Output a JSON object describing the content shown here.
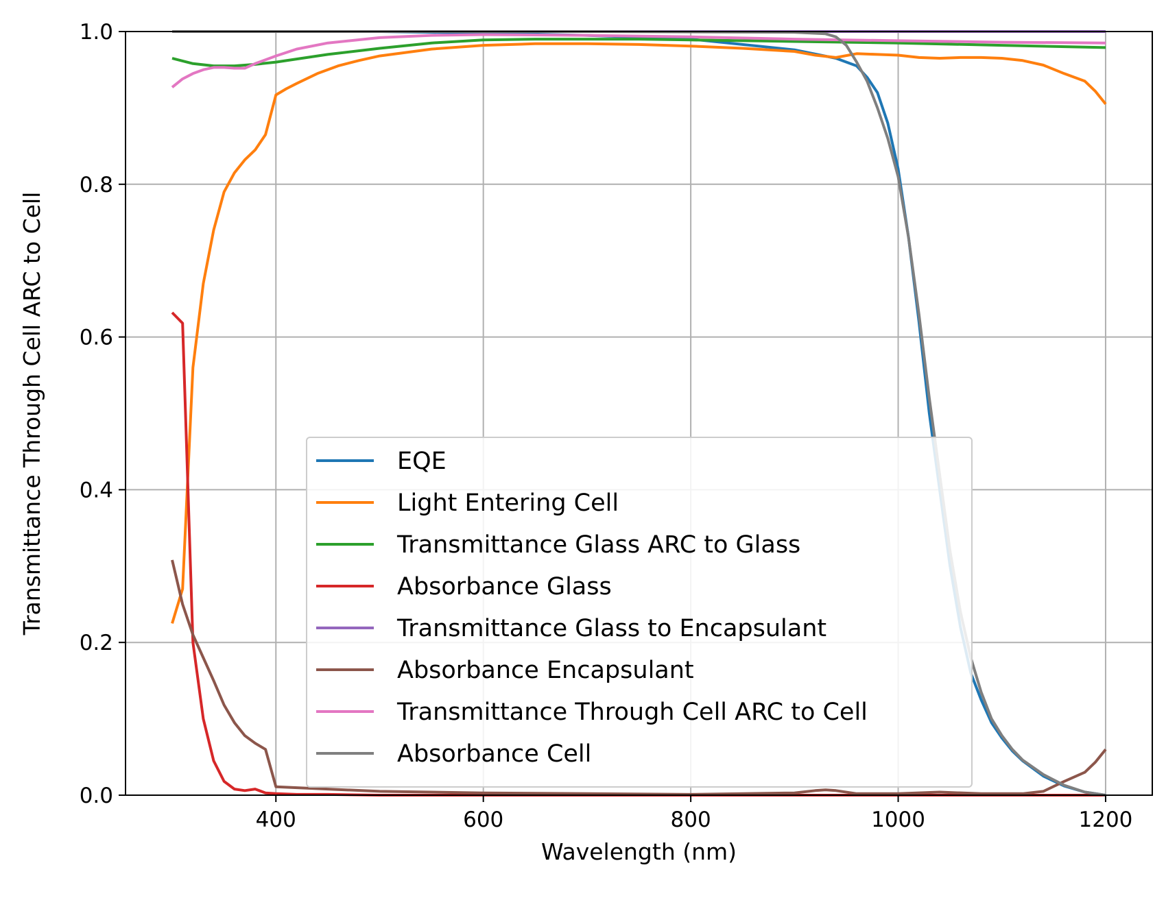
{
  "chart_data": {
    "type": "line",
    "title": "",
    "xlabel": "Wavelength (nm)",
    "ylabel": "Transmittance Through Cell ARC to Cell",
    "xlim": [
      255,
      1245
    ],
    "ylim": [
      0.0,
      1.0
    ],
    "xticks": [
      400,
      600,
      800,
      1000,
      1200
    ],
    "yticks": [
      0.0,
      0.2,
      0.4,
      0.6,
      0.8,
      1.0
    ],
    "xtick_labels": [
      "400",
      "600",
      "800",
      "1000",
      "1200"
    ],
    "ytick_labels": [
      "0.0",
      "0.2",
      "0.4",
      "0.6",
      "0.8",
      "1.0"
    ],
    "grid": true,
    "legend_position": "lower-center",
    "series": [
      {
        "name": "EQE",
        "color": "#1f77b4",
        "x": [
          300,
          400,
          500,
          600,
          700,
          800,
          900,
          940,
          960,
          970,
          980,
          990,
          1000,
          1010,
          1020,
          1030,
          1040,
          1050,
          1060,
          1070,
          1080,
          1090,
          1100,
          1110,
          1120,
          1140,
          1160,
          1180,
          1200
        ],
        "y": [
          1.0,
          1.0,
          1.0,
          0.998,
          0.995,
          0.99,
          0.976,
          0.965,
          0.955,
          0.94,
          0.92,
          0.88,
          0.82,
          0.73,
          0.62,
          0.5,
          0.4,
          0.3,
          0.22,
          0.16,
          0.125,
          0.095,
          0.075,
          0.058,
          0.045,
          0.025,
          0.012,
          0.004,
          0.0
        ]
      },
      {
        "name": "Light Entering Cell",
        "color": "#ff7f0e",
        "x": [
          300,
          310,
          320,
          330,
          340,
          350,
          360,
          370,
          380,
          390,
          400,
          410,
          420,
          440,
          460,
          480,
          500,
          550,
          600,
          650,
          700,
          750,
          800,
          850,
          900,
          920,
          940,
          960,
          980,
          1000,
          1020,
          1040,
          1060,
          1080,
          1100,
          1120,
          1140,
          1160,
          1180,
          1190,
          1200
        ],
        "y": [
          0.225,
          0.27,
          0.56,
          0.67,
          0.74,
          0.79,
          0.815,
          0.832,
          0.845,
          0.865,
          0.917,
          0.925,
          0.932,
          0.945,
          0.955,
          0.962,
          0.968,
          0.977,
          0.982,
          0.984,
          0.984,
          0.983,
          0.981,
          0.978,
          0.974,
          0.969,
          0.966,
          0.971,
          0.97,
          0.969,
          0.966,
          0.965,
          0.966,
          0.966,
          0.965,
          0.962,
          0.956,
          0.945,
          0.935,
          0.922,
          0.905
        ]
      },
      {
        "name": "Transmittance Glass ARC to Glass",
        "color": "#2ca02c",
        "x": [
          300,
          320,
          340,
          360,
          380,
          400,
          450,
          500,
          550,
          600,
          650,
          700,
          750,
          800,
          900,
          1000,
          1100,
          1200
        ],
        "y": [
          0.965,
          0.958,
          0.955,
          0.955,
          0.957,
          0.96,
          0.97,
          0.978,
          0.985,
          0.989,
          0.99,
          0.99,
          0.99,
          0.989,
          0.987,
          0.985,
          0.982,
          0.979
        ]
      },
      {
        "name": "Absorbance Glass",
        "color": "#d62728",
        "x": [
          300,
          310,
          320,
          330,
          340,
          350,
          360,
          370,
          380,
          390,
          400,
          420,
          450,
          500,
          600,
          800,
          1000,
          1200
        ],
        "y": [
          0.632,
          0.618,
          0.2,
          0.1,
          0.045,
          0.018,
          0.008,
          0.006,
          0.008,
          0.003,
          0.002,
          0.001,
          0.001,
          0.0,
          0.0,
          0.0,
          0.0,
          0.0
        ]
      },
      {
        "name": "Transmittance Glass to Encapsulant",
        "color": "#9467bd",
        "x": [
          300,
          400,
          600,
          800,
          1000,
          1200
        ],
        "y": [
          1.0,
          1.0,
          1.0,
          1.0,
          1.0,
          1.0
        ]
      },
      {
        "name": "Absorbance Encapsulant",
        "color": "#8c564b",
        "x": [
          300,
          310,
          320,
          330,
          340,
          350,
          360,
          370,
          380,
          390,
          400,
          450,
          500,
          600,
          700,
          800,
          900,
          920,
          930,
          940,
          960,
          1000,
          1040,
          1080,
          1120,
          1140,
          1160,
          1180,
          1190,
          1200
        ],
        "y": [
          0.308,
          0.25,
          0.21,
          0.18,
          0.15,
          0.118,
          0.095,
          0.078,
          0.068,
          0.06,
          0.011,
          0.008,
          0.005,
          0.003,
          0.002,
          0.001,
          0.003,
          0.006,
          0.007,
          0.006,
          0.002,
          0.002,
          0.004,
          0.002,
          0.002,
          0.005,
          0.018,
          0.03,
          0.043,
          0.06
        ]
      },
      {
        "name": "Transmittance Through Cell ARC to Cell",
        "color": "#e377c2",
        "x": [
          300,
          310,
          320,
          330,
          340,
          350,
          360,
          370,
          380,
          390,
          400,
          420,
          450,
          500,
          550,
          600,
          700,
          800,
          900,
          1000,
          1100,
          1200
        ],
        "y": [
          0.927,
          0.938,
          0.945,
          0.95,
          0.953,
          0.953,
          0.952,
          0.952,
          0.958,
          0.963,
          0.968,
          0.977,
          0.985,
          0.992,
          0.995,
          0.996,
          0.995,
          0.993,
          0.99,
          0.988,
          0.986,
          0.985
        ]
      },
      {
        "name": "Absorbance Cell",
        "color": "#7f7f7f",
        "x": [
          300,
          500,
          700,
          900,
          930,
          940,
          950,
          960,
          970,
          980,
          990,
          1000,
          1010,
          1020,
          1030,
          1040,
          1050,
          1060,
          1070,
          1080,
          1090,
          1100,
          1110,
          1120,
          1140,
          1160,
          1180,
          1200
        ],
        "y": [
          1.0,
          1.0,
          1.0,
          0.999,
          0.997,
          0.993,
          0.982,
          0.96,
          0.935,
          0.9,
          0.86,
          0.81,
          0.73,
          0.63,
          0.52,
          0.42,
          0.32,
          0.24,
          0.18,
          0.135,
          0.1,
          0.078,
          0.06,
          0.046,
          0.027,
          0.013,
          0.004,
          0.0
        ]
      }
    ]
  }
}
